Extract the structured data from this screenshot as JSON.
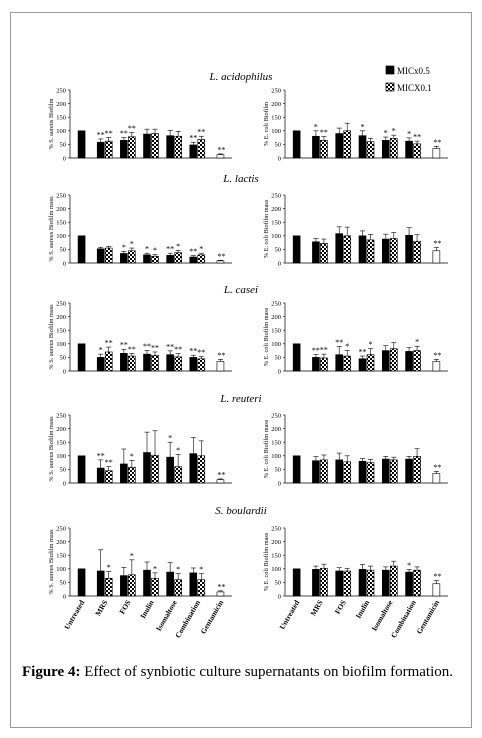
{
  "legend": [
    {
      "label": "MICx0.5",
      "pattern": "solid"
    },
    {
      "label": "MICX0.1",
      "pattern": "checker"
    }
  ],
  "caption": {
    "label": "Figure 4:",
    "text": "Effect of synbiotic culture supernatants on biofilm formation."
  },
  "chart_data": {
    "type": "bar",
    "categories": [
      "Untreated",
      "MRS",
      "FOS",
      "Inulin",
      "Isomaltose",
      "Combination",
      "Gentamicin"
    ],
    "ylim": [
      0,
      250
    ],
    "yticks": [
      0,
      50,
      100,
      150,
      200,
      250
    ],
    "rows": [
      {
        "title": "L. acidophilus",
        "panels": [
          {
            "ylabel": "% S. aureus Biofilm",
            "untreated": {
              "v": 100,
              "e": 0
            },
            "series": [
              {
                "name": "MICx0.5",
                "values": [
                  58,
                  65,
                  88,
                  82,
                  48
                ],
                "errors": [
                  12,
                  10,
                  18,
                  20,
                  10
                ]
              },
              {
                "name": "MICX0.1",
                "values": [
                  62,
                  78,
                  90,
                  80,
                  68
                ],
                "errors": [
                  14,
                  16,
                  16,
                  18,
                  12
                ]
              }
            ],
            "gentamicin": {
              "v": 12,
              "e": 3
            },
            "stars": [
              [
                "**",
                "**"
              ],
              [
                "**",
                "**"
              ],
              [
                "",
                ""
              ],
              [
                "",
                ""
              ],
              [
                "**",
                "**"
              ]
            ],
            "gentamicin_star": "**"
          },
          {
            "ylabel": "% E. coli Biofilm",
            "untreated": {
              "v": 100,
              "e": 0
            },
            "series": [
              {
                "name": "MICx0.5",
                "values": [
                  80,
                  90,
                  82,
                  65,
                  62
                ],
                "errors": [
                  20,
                  20,
                  18,
                  12,
                  12
                ]
              },
              {
                "name": "MICX0.1",
                "values": [
                  65,
                  100,
                  60,
                  72,
                  52
                ],
                "errors": [
                  14,
                  28,
                  12,
                  12,
                  10
                ]
              }
            ],
            "gentamicin": {
              "v": 35,
              "e": 8
            },
            "stars": [
              [
                "*",
                "**"
              ],
              [
                "",
                ""
              ],
              [
                "*",
                ""
              ],
              [
                "*",
                "*"
              ],
              [
                "*",
                "**"
              ]
            ],
            "gentamicin_star": "**"
          }
        ]
      },
      {
        "title": "L. lactis",
        "panels": [
          {
            "ylabel": "% S. aureus Biofilm mass",
            "untreated": {
              "v": 100,
              "e": 0
            },
            "series": [
              {
                "name": "MICx0.5",
                "values": [
                  52,
                  35,
                  30,
                  28,
                  22
                ],
                "errors": [
                  6,
                  8,
                  6,
                  8,
                  5
                ]
              },
              {
                "name": "MICX0.1",
                "values": [
                  55,
                  45,
                  25,
                  38,
                  30
                ],
                "errors": [
                  6,
                  10,
                  6,
                  8,
                  6
                ]
              }
            ],
            "gentamicin": {
              "v": 8,
              "e": 2
            },
            "stars": [
              [
                "",
                ""
              ],
              [
                "*",
                "*"
              ],
              [
                "*",
                "*"
              ],
              [
                "**",
                "*"
              ],
              [
                "**",
                "*"
              ]
            ],
            "gentamicin_star": "**"
          },
          {
            "ylabel": "% E. coli Biofilm mass",
            "untreated": {
              "v": 100,
              "e": 0
            },
            "series": [
              {
                "name": "MICx0.5",
                "values": [
                  78,
                  108,
                  100,
                  88,
                  102
                ],
                "errors": [
                  12,
                  25,
                  18,
                  18,
                  28
                ]
              },
              {
                "name": "MICX0.1",
                "values": [
                  72,
                  100,
                  85,
                  90,
                  80
                ],
                "errors": [
                  16,
                  32,
                  20,
                  22,
                  24
                ]
              }
            ],
            "gentamicin": {
              "v": 45,
              "e": 12
            },
            "stars": [
              [
                "",
                ""
              ],
              [
                "",
                ""
              ],
              [
                "",
                ""
              ],
              [
                "",
                ""
              ],
              [
                "",
                ""
              ]
            ],
            "gentamicin_star": "**"
          }
        ]
      },
      {
        "title": "L. casei",
        "panels": [
          {
            "ylabel": "% S. aureus Biofilm mass",
            "untreated": {
              "v": 100,
              "e": 0
            },
            "series": [
              {
                "name": "MICx0.5",
                "values": [
                  50,
                  65,
                  62,
                  60,
                  50
                ],
                "errors": [
                  12,
                  15,
                  14,
                  14,
                  8
                ]
              },
              {
                "name": "MICX0.1",
                "values": [
                  70,
                  55,
                  58,
                  52,
                  45
                ],
                "errors": [
                  18,
                  10,
                  12,
                  12,
                  8
                ]
              }
            ],
            "gentamicin": {
              "v": 35,
              "e": 8
            },
            "stars": [
              [
                "*",
                "**"
              ],
              [
                "**",
                "**"
              ],
              [
                "**",
                "**"
              ],
              [
                "**",
                "**"
              ],
              [
                "**",
                "**"
              ]
            ],
            "gentamicin_star": "**"
          },
          {
            "ylabel": "% E. coli Biofilm mass",
            "untreated": {
              "v": 100,
              "e": 0
            },
            "series": [
              {
                "name": "MICx0.5",
                "values": [
                  50,
                  60,
                  45,
                  75,
                  72
                ],
                "errors": [
                  10,
                  30,
                  10,
                  18,
                  14
                ]
              },
              {
                "name": "MICX0.1",
                "values": [
                  48,
                  55,
                  60,
                  82,
                  75
                ],
                "errors": [
                  14,
                  20,
                  22,
                  22,
                  16
                ]
              }
            ],
            "gentamicin": {
              "v": 35,
              "e": 8
            },
            "stars": [
              [
                "**",
                "**"
              ],
              [
                "**",
                "*"
              ],
              [
                "**",
                "*"
              ],
              [
                "",
                ""
              ],
              [
                "",
                "*"
              ]
            ],
            "gentamicin_star": "**"
          }
        ]
      },
      {
        "title": "L. reuteri",
        "panels": [
          {
            "ylabel": "% S. aureus Biofilm mass",
            "untreated": {
              "v": 100,
              "e": 0
            },
            "series": [
              {
                "name": "MICx0.5",
                "values": [
                  55,
                  70,
                  112,
                  95,
                  108
                ],
                "errors": [
                  30,
                  55,
                  75,
                  55,
                  60
                ]
              },
              {
                "name": "MICX0.1",
                "values": [
                  45,
                  58,
                  102,
                  60,
                  100
                ],
                "errors": [
                  15,
                  25,
                  90,
                  45,
                  55
                ]
              }
            ],
            "gentamicin": {
              "v": 12,
              "e": 3
            },
            "stars": [
              [
                "**",
                "**"
              ],
              [
                "",
                "*"
              ],
              [
                "",
                ""
              ],
              [
                "*",
                "*"
              ],
              [
                "",
                ""
              ]
            ],
            "gentamicin_star": "**"
          },
          {
            "ylabel": "% E. coli Biofilm mass",
            "untreated": {
              "v": 100,
              "e": 0
            },
            "series": [
              {
                "name": "MICx0.5",
                "values": [
                  82,
                  85,
                  80,
                  88,
                  88
                ],
                "errors": [
                  15,
                  25,
                  10,
                  10,
                  10
                ]
              },
              {
                "name": "MICX0.1",
                "values": [
                  85,
                  78,
                  75,
                  85,
                  98
                ],
                "errors": [
                  18,
                  22,
                  12,
                  10,
                  28
                ]
              }
            ],
            "gentamicin": {
              "v": 35,
              "e": 8
            },
            "stars": [
              [
                "",
                ""
              ],
              [
                "",
                ""
              ],
              [
                "",
                ""
              ],
              [
                "",
                ""
              ],
              [
                "",
                ""
              ]
            ],
            "gentamicin_star": "**"
          }
        ]
      },
      {
        "title": "S. boulardii",
        "panels": [
          {
            "ylabel": "% S. aureus Biofilm mass",
            "untreated": {
              "v": 100,
              "e": 0
            },
            "series": [
              {
                "name": "MICx0.5",
                "values": [
                  92,
                  75,
                  95,
                  88,
                  85
                ],
                "errors": [
                  78,
                  30,
                  30,
                  35,
                  18
                ]
              },
              {
                "name": "MICX0.1",
                "values": [
                  65,
                  78,
                  65,
                  60,
                  60
                ],
                "errors": [
                  25,
                  55,
                  20,
                  22,
                  22
                ]
              }
            ],
            "gentamicin": {
              "v": 15,
              "e": 4
            },
            "stars": [
              [
                "",
                "*"
              ],
              [
                "",
                "*"
              ],
              [
                "",
                "*"
              ],
              [
                "",
                "*"
              ],
              [
                "",
                "*"
              ]
            ],
            "gentamicin_star": "**"
          },
          {
            "ylabel": "% E. coli Biofilm mass",
            "untreated": {
              "v": 100,
              "e": 0
            },
            "series": [
              {
                "name": "MICx0.5",
                "values": [
                  98,
                  92,
                  98,
                  95,
                  88
                ],
                "errors": [
                  12,
                  12,
                  18,
                  12,
                  10
                ]
              },
              {
                "name": "MICX0.1",
                "values": [
                  102,
                  92,
                  95,
                  110,
                  95
                ],
                "errors": [
                  15,
                  10,
                  15,
                  18,
                  12
                ]
              }
            ],
            "gentamicin": {
              "v": 45,
              "e": 12
            },
            "stars": [
              [
                "",
                ""
              ],
              [
                "",
                ""
              ],
              [
                "",
                ""
              ],
              [
                "",
                ""
              ],
              [
                "*",
                ""
              ]
            ],
            "gentamicin_star": "**"
          }
        ]
      }
    ]
  }
}
